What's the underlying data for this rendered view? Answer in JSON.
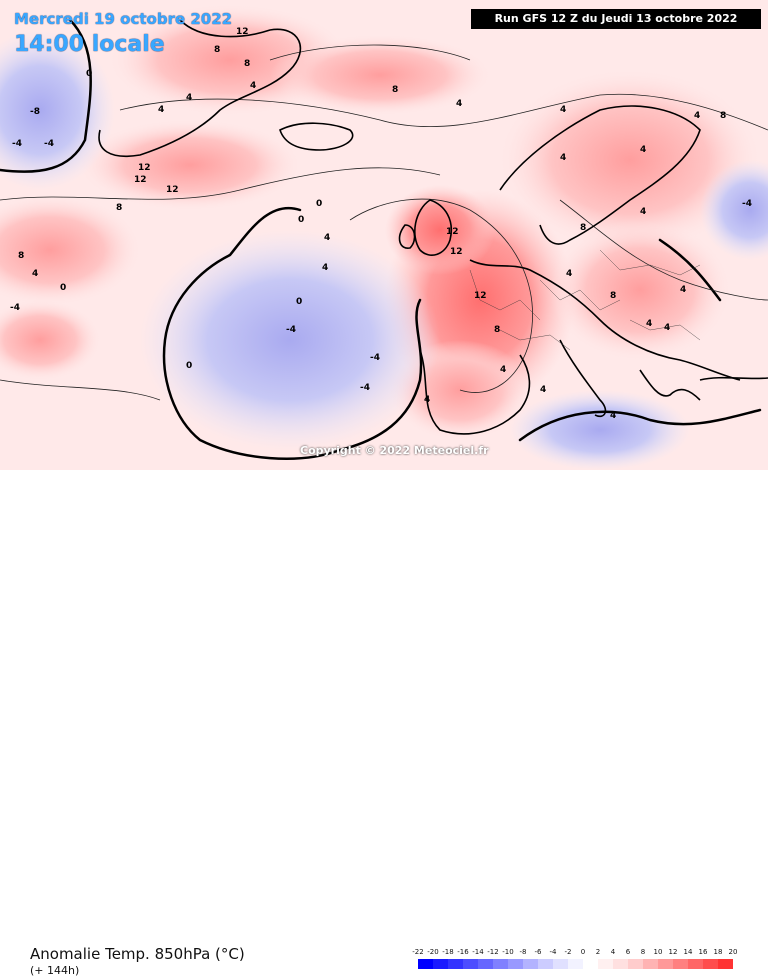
{
  "header": {
    "date": "Mercredi 19 octobre 2022",
    "time": "14:00 locale",
    "run": "Run GFS 12 Z du Jeudi 13 octobre 2022"
  },
  "copyright": "Copyright © 2022 Meteociel.fr",
  "footer": {
    "title": "Anomalie Temp. 850hPa (°C)",
    "subtitle": "(+ 144h)"
  },
  "legend": {
    "ticks": [
      "-22",
      "-20",
      "-18",
      "-16",
      "-14",
      "-12",
      "-10",
      "-8",
      "-6",
      "-4",
      "-2",
      "0",
      "2",
      "4",
      "6",
      "8",
      "10",
      "12",
      "14",
      "16",
      "18",
      "20"
    ],
    "colors": [
      "#0000ff",
      "#1a1aff",
      "#3333ff",
      "#4d4dff",
      "#6666ff",
      "#8080ff",
      "#9999ff",
      "#b3b3ff",
      "#ccccff",
      "#e0e0ff",
      "#f2f2ff",
      "#ffffff",
      "#fff0f0",
      "#ffe0e0",
      "#ffcccc",
      "#ffb3b3",
      "#ff9999",
      "#ff8080",
      "#ff6666",
      "#ff4d4d",
      "#ff3333",
      "#ff0000"
    ]
  },
  "map_labels": [
    {
      "text": "12"
    },
    {
      "text": "8"
    },
    {
      "text": "8"
    },
    {
      "text": "4"
    },
    {
      "text": "0"
    },
    {
      "text": "-8"
    },
    {
      "text": "-4"
    },
    {
      "text": "12"
    },
    {
      "text": "12"
    },
    {
      "text": "12"
    },
    {
      "text": "8"
    },
    {
      "text": "4"
    },
    {
      "text": "4"
    },
    {
      "text": "0"
    },
    {
      "text": "-4"
    },
    {
      "text": "-4"
    },
    {
      "text": "0"
    },
    {
      "text": "4"
    },
    {
      "text": "8"
    },
    {
      "text": "12"
    },
    {
      "text": "8"
    },
    {
      "text": "4"
    },
    {
      "text": "4"
    },
    {
      "text": "4"
    },
    {
      "text": "-4"
    },
    {
      "text": "4"
    },
    {
      "text": "4"
    },
    {
      "text": "8"
    },
    {
      "text": "12"
    },
    {
      "text": "12"
    },
    {
      "text": "8"
    },
    {
      "text": "4"
    },
    {
      "text": "4"
    },
    {
      "text": "0"
    },
    {
      "text": "4"
    },
    {
      "text": "4"
    },
    {
      "text": "0"
    },
    {
      "text": "4"
    },
    {
      "text": "-4"
    },
    {
      "text": "-4"
    },
    {
      "text": "8"
    },
    {
      "text": "4"
    },
    {
      "text": "-4"
    },
    {
      "text": "0"
    },
    {
      "text": "4"
    },
    {
      "text": "4"
    },
    {
      "text": "4"
    },
    {
      "text": "4"
    },
    {
      "text": "8"
    },
    {
      "text": "4"
    }
  ]
}
